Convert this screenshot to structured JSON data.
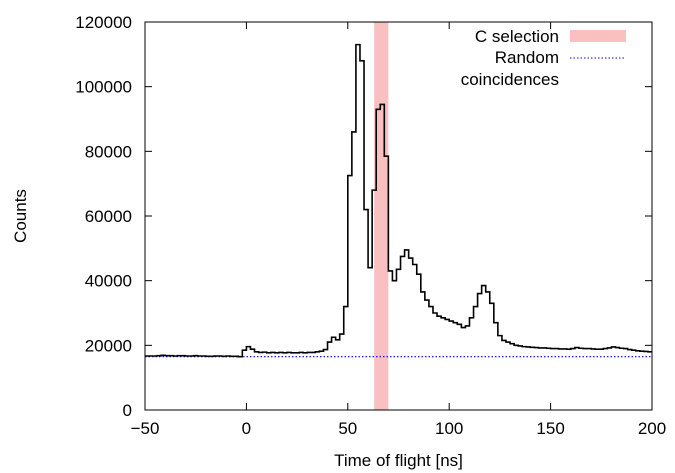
{
  "chart_data": {
    "type": "line",
    "title": "",
    "xlabel": "Time of flight [ns]",
    "ylabel": "Counts",
    "xlim": [
      -50,
      200
    ],
    "ylim": [
      0,
      120000
    ],
    "x_ticks": [
      -50,
      0,
      50,
      100,
      150,
      200
    ],
    "x_tick_labels": [
      "−50",
      "0",
      "50",
      "100",
      "150",
      "200"
    ],
    "y_ticks": [
      0,
      20000,
      40000,
      60000,
      80000,
      100000,
      120000
    ],
    "y_tick_labels": [
      "0",
      "20000",
      "40000",
      "60000",
      "80000",
      "100000",
      "120000"
    ],
    "grid": false,
    "legend_position": "top-right",
    "series": [
      {
        "name": "",
        "style": "step",
        "color": "#000000",
        "bin_width": 2,
        "x": [
          -50,
          -48,
          -46,
          -44,
          -42,
          -40,
          -38,
          -36,
          -34,
          -32,
          -30,
          -28,
          -26,
          -24,
          -22,
          -20,
          -18,
          -16,
          -14,
          -12,
          -10,
          -8,
          -6,
          -4,
          -2,
          0,
          2,
          4,
          6,
          8,
          10,
          12,
          14,
          16,
          18,
          20,
          22,
          24,
          26,
          28,
          30,
          32,
          34,
          36,
          38,
          40,
          42,
          44,
          46,
          48,
          50,
          52,
          54,
          56,
          58,
          60,
          62,
          64,
          66,
          68,
          70,
          72,
          74,
          76,
          78,
          80,
          82,
          84,
          86,
          88,
          90,
          92,
          94,
          96,
          98,
          100,
          102,
          104,
          106,
          108,
          110,
          112,
          114,
          116,
          118,
          120,
          122,
          124,
          126,
          128,
          130,
          132,
          134,
          136,
          138,
          140,
          142,
          144,
          146,
          148,
          150,
          152,
          154,
          156,
          158,
          160,
          162,
          164,
          166,
          168,
          170,
          172,
          174,
          176,
          178,
          180,
          182,
          184,
          186,
          188,
          190,
          192,
          194,
          196,
          198
        ],
        "values": [
          16700,
          16700,
          16700,
          16800,
          16900,
          16800,
          16800,
          16700,
          16800,
          16800,
          16700,
          16700,
          16800,
          16700,
          16700,
          16600,
          16600,
          16700,
          16700,
          16600,
          16700,
          16600,
          16600,
          16500,
          18500,
          19600,
          18800,
          18000,
          17800,
          17900,
          17700,
          17800,
          17700,
          17800,
          17700,
          17800,
          17700,
          17700,
          17800,
          17700,
          17800,
          17800,
          18000,
          18200,
          18700,
          21000,
          22500,
          21700,
          23500,
          32000,
          72500,
          86000,
          113000,
          108000,
          62000,
          44000,
          68000,
          93000,
          94500,
          78500,
          43000,
          40000,
          43500,
          47500,
          49500,
          47000,
          45000,
          42000,
          36500,
          34000,
          32000,
          30000,
          29000,
          28500,
          28000,
          27500,
          27000,
          26500,
          25500,
          26000,
          28500,
          32000,
          36000,
          38500,
          36500,
          33000,
          27000,
          23000,
          21500,
          21000,
          20500,
          20000,
          19800,
          19600,
          19500,
          19400,
          19300,
          19200,
          19200,
          19100,
          19000,
          19000,
          18900,
          18900,
          18800,
          19000,
          19300,
          19100,
          19000,
          19000,
          18900,
          18800,
          18800,
          19000,
          19200,
          19500,
          19300,
          19100,
          19000,
          18700,
          18500,
          18300,
          18200,
          18100,
          18000
        ]
      },
      {
        "name": "Random coincidences",
        "style": "dotted",
        "color": "#0000ff",
        "x": [
          -50,
          200
        ],
        "values": [
          16500,
          16500
        ]
      }
    ],
    "shaded_regions": [
      {
        "name": "C selection",
        "x_range": [
          63,
          70
        ],
        "color": "#f8c0c0"
      }
    ],
    "legend": [
      {
        "label": "C selection",
        "type": "box",
        "color": "#f8c0c0"
      },
      {
        "label": "Random",
        "type": "line",
        "color": "#0000ff"
      },
      {
        "label": "coincidences",
        "type": "none"
      }
    ]
  }
}
